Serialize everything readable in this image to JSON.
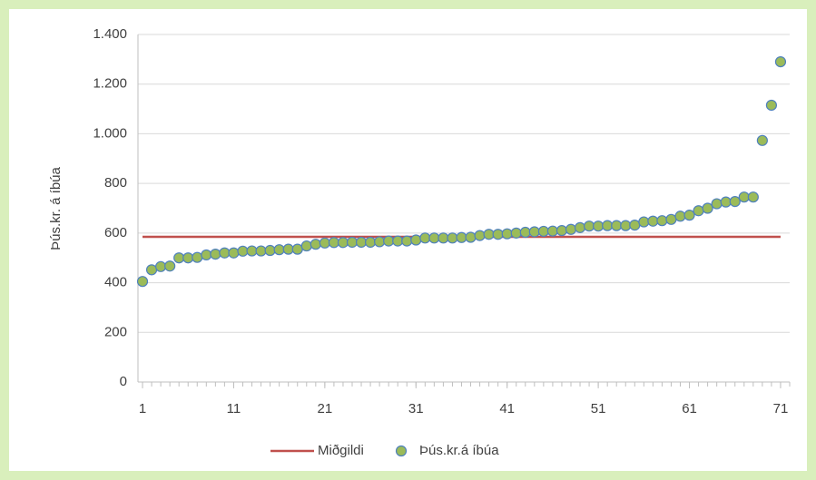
{
  "chart_data": {
    "type": "scatter",
    "y_label": "Þús.kr. á íbúa",
    "x": [
      1,
      2,
      3,
      4,
      5,
      6,
      7,
      8,
      9,
      10,
      11,
      12,
      13,
      14,
      15,
      16,
      17,
      18,
      19,
      20,
      21,
      22,
      23,
      24,
      25,
      26,
      27,
      28,
      29,
      30,
      31,
      32,
      33,
      34,
      35,
      36,
      37,
      38,
      39,
      40,
      41,
      42,
      43,
      44,
      45,
      46,
      47,
      48,
      49,
      50,
      51,
      52,
      53,
      54,
      55,
      56,
      57,
      58,
      59,
      60,
      61,
      62,
      63,
      64,
      65,
      66,
      67,
      68,
      69,
      70,
      71
    ],
    "series": [
      {
        "name": "Miðgildi",
        "type": "line",
        "color": "#c0504d",
        "x": [
          1,
          71
        ],
        "values": [
          585,
          585
        ]
      },
      {
        "name": "Þús.kr.á íbúa",
        "type": "scatter",
        "color": "#9bbb59",
        "edge_color": "#4f81bd",
        "values": [
          405,
          452,
          465,
          467,
          500,
          500,
          502,
          512,
          515,
          520,
          520,
          527,
          528,
          528,
          530,
          533,
          535,
          535,
          548,
          555,
          560,
          562,
          562,
          563,
          563,
          563,
          565,
          568,
          568,
          568,
          572,
          580,
          580,
          580,
          580,
          582,
          583,
          590,
          595,
          595,
          597,
          600,
          603,
          605,
          607,
          608,
          610,
          615,
          622,
          628,
          628,
          630,
          630,
          630,
          632,
          645,
          648,
          650,
          655,
          668,
          672,
          690,
          700,
          718,
          725,
          727,
          745,
          745,
          973,
          1115,
          1290
        ]
      }
    ],
    "xlim": [
      0.5,
      72
    ],
    "xticks": [
      1,
      11,
      21,
      31,
      41,
      51,
      61,
      71
    ],
    "xminor_step": 1,
    "ylim": [
      0,
      1400
    ],
    "yticks": [
      0,
      200,
      400,
      600,
      800,
      {
        "value": 1000,
        "label": "1.000"
      },
      {
        "value": 1200,
        "label": "1.200"
      },
      {
        "value": 1400,
        "label": "1.400"
      }
    ],
    "grid": true,
    "legend": "bottom"
  }
}
